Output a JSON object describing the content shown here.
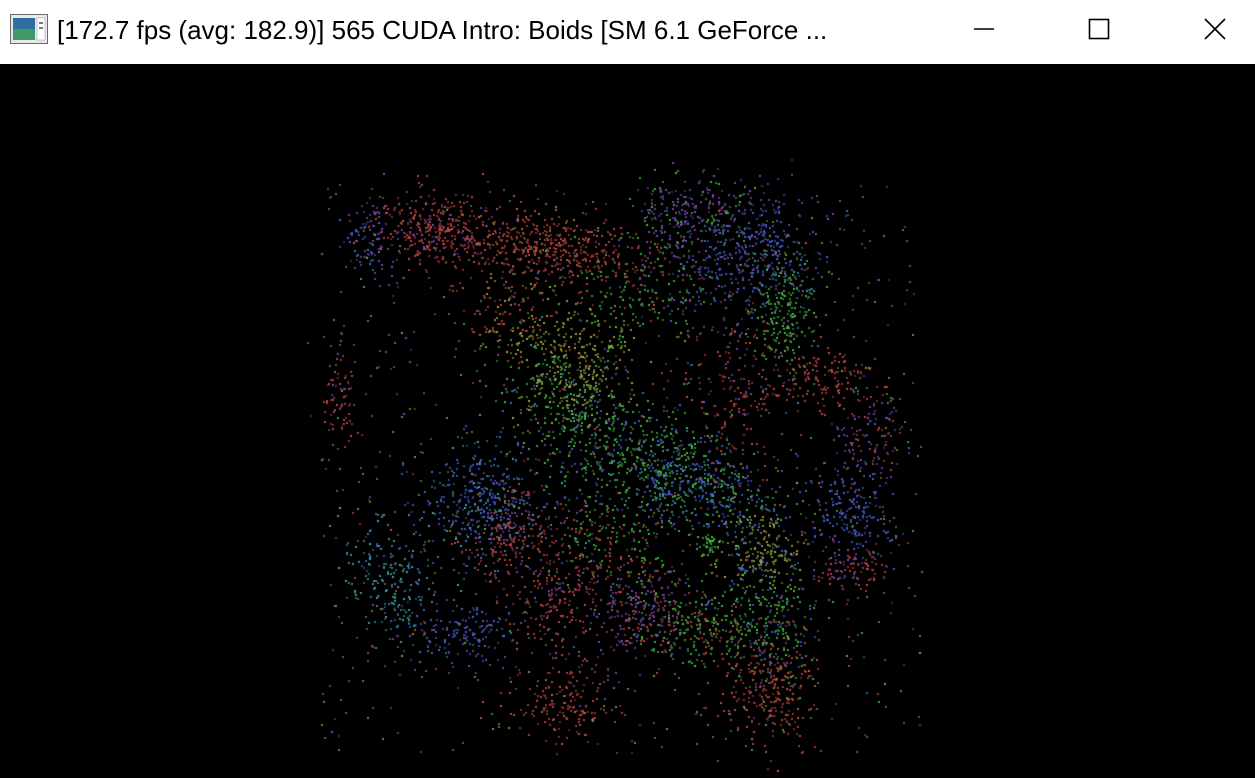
{
  "window": {
    "title": "[172.7 fps (avg: 182.9)] 565 CUDA Intro: Boids [SM 6.1 GeForce ...",
    "icon": "app-icon",
    "buttons": {
      "minimize": "minimize-icon",
      "maximize": "maximize-icon",
      "close": "close-icon"
    }
  },
  "viewport": {
    "background": "#000000",
    "content": "boids-particle-simulation",
    "particle_colors": [
      "#c04040",
      "#4060d0",
      "#40b040",
      "#9a8f3a",
      "#6f4aa8",
      "#3f9a9a"
    ]
  }
}
